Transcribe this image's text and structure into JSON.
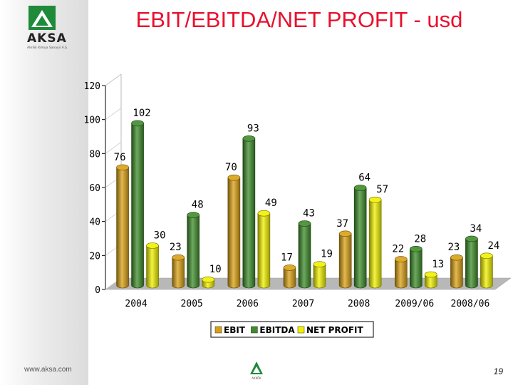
{
  "title": "EBIT/EBITDA/NET PROFIT - usd",
  "logo": {
    "word": "AKSA",
    "subtitle": "Akrilik Kimya Sanayii A.Ş."
  },
  "footer": {
    "url": "www.aksa.com",
    "page_number": "19",
    "logo_text": "AKKÖK"
  },
  "chart_data": {
    "type": "bar",
    "title": "EBIT/EBITDA/NET PROFIT - usd",
    "categories": [
      "2004",
      "2005",
      "2006",
      "2007",
      "2008",
      "2009/06",
      "2008/06"
    ],
    "series": [
      {
        "name": "EBIT",
        "values": [
          76,
          23,
          70,
          17,
          37,
          22,
          23
        ],
        "color": "#d9a014"
      },
      {
        "name": "EBITDA",
        "values": [
          102,
          48,
          93,
          43,
          64,
          28,
          34
        ],
        "color": "#3e8c2a"
      },
      {
        "name": "NET PROFIT",
        "values": [
          30,
          10,
          49,
          19,
          57,
          13,
          24
        ],
        "color": "#f0f000"
      }
    ],
    "y_ticks": [
      0,
      20,
      40,
      60,
      80,
      100,
      120
    ],
    "ylim": [
      0,
      120
    ],
    "xlabel": "",
    "ylabel": "",
    "legend": "bottom-center"
  }
}
